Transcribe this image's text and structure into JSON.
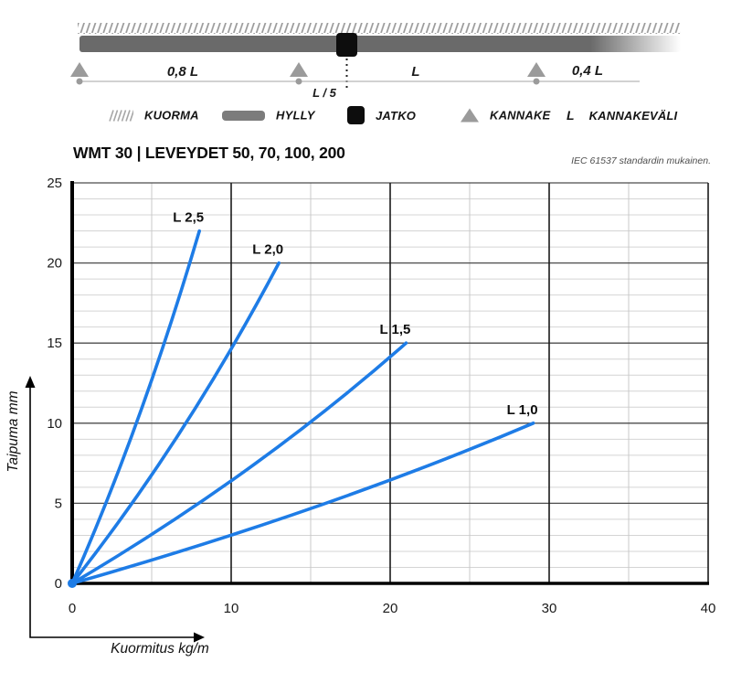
{
  "schematic": {
    "labels": {
      "left_span": "0,8 L",
      "joint_offset": "L / 5",
      "mid_span": "L",
      "right_span": "0,4 L"
    }
  },
  "legend": {
    "items": [
      {
        "id": "kuorma",
        "label": "KUORMA"
      },
      {
        "id": "hylly",
        "label": "HYLLY"
      },
      {
        "id": "jatko",
        "label": "JATKO"
      },
      {
        "id": "kannake",
        "label": "KANNAKE"
      },
      {
        "id": "kannakevali",
        "symbol": "L",
        "label": "KANNAKEVÄLI"
      }
    ]
  },
  "header": {
    "title": "WMT 30 | LEVEYDET 50, 70, 100, 200",
    "standard_note": "IEC 61537 standardin mukainen."
  },
  "chart_data": {
    "type": "line",
    "title": "WMT 30 | LEVEYDET 50, 70, 100, 200",
    "xlabel": "Kuormitus kg/m",
    "ylabel": "Taipuma mm",
    "xlim": [
      0,
      40
    ],
    "ylim": [
      0,
      25
    ],
    "x_major_ticks": [
      0,
      10,
      20,
      30,
      40
    ],
    "x_minor_step": 5,
    "y_major_ticks": [
      0,
      5,
      10,
      15,
      20,
      25
    ],
    "y_minor_step": 1,
    "grid": true,
    "legend_position": "inline-labels",
    "line_color": "#1e7ce6",
    "series": [
      {
        "name": "L 2,5",
        "points": [
          [
            0,
            0
          ],
          [
            8,
            22
          ]
        ]
      },
      {
        "name": "L 2,0",
        "points": [
          [
            0,
            0
          ],
          [
            13,
            20
          ]
        ]
      },
      {
        "name": "L 1,5",
        "points": [
          [
            0,
            0
          ],
          [
            21,
            15
          ]
        ]
      },
      {
        "name": "L 1,0",
        "points": [
          [
            0,
            0
          ],
          [
            29,
            10
          ]
        ]
      }
    ]
  }
}
